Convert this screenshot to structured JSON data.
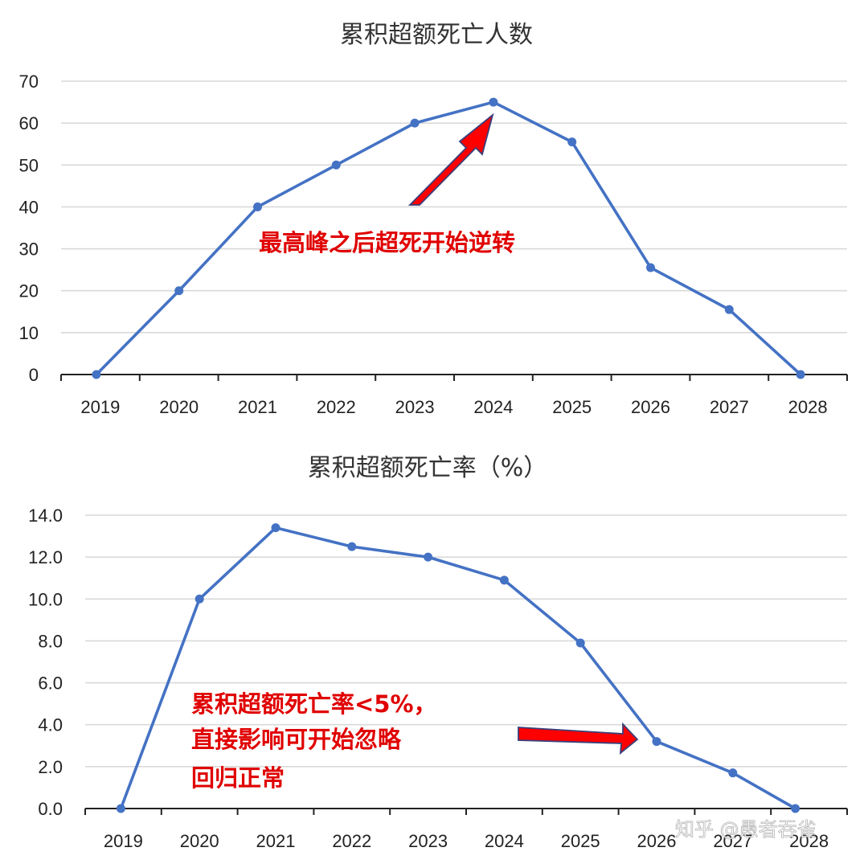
{
  "chart_data": [
    {
      "type": "line",
      "title": "累积超额死亡人数",
      "categories": [
        "2019",
        "2020",
        "2021",
        "2022",
        "2023",
        "2024",
        "2025",
        "2026",
        "2027",
        "2028"
      ],
      "values": [
        0,
        20,
        40,
        50,
        60,
        65,
        55.5,
        25.5,
        15.5,
        0
      ],
      "ylim": [
        0,
        70
      ],
      "yticks": [
        "0",
        "10",
        "20",
        "30",
        "40",
        "50",
        "60",
        "70"
      ],
      "grid": true,
      "color": "#4472c4",
      "annotation": {
        "text": "最高峰之后超死开始逆转",
        "color": "#e00000",
        "points_to": "2024"
      }
    },
    {
      "type": "line",
      "title": "累积超额死亡率（%）",
      "categories": [
        "2019",
        "2020",
        "2021",
        "2022",
        "2023",
        "2024",
        "2025",
        "2026",
        "2027",
        "2028"
      ],
      "values": [
        0.0,
        10.0,
        13.4,
        12.5,
        12.0,
        10.9,
        7.9,
        3.2,
        1.7,
        0.0
      ],
      "ylim": [
        0,
        14
      ],
      "yticks": [
        "0.0",
        "2.0",
        "4.0",
        "6.0",
        "8.0",
        "10.0",
        "12.0",
        "14.0"
      ],
      "grid": true,
      "color": "#4472c4",
      "annotation": {
        "lines": [
          "累积超额死亡率<5%，",
          "直接影响可开始忽略",
          "回归正常"
        ],
        "color": "#e00000",
        "points_to": "2026"
      }
    }
  ],
  "watermark": "知乎 @愚者吞雀"
}
